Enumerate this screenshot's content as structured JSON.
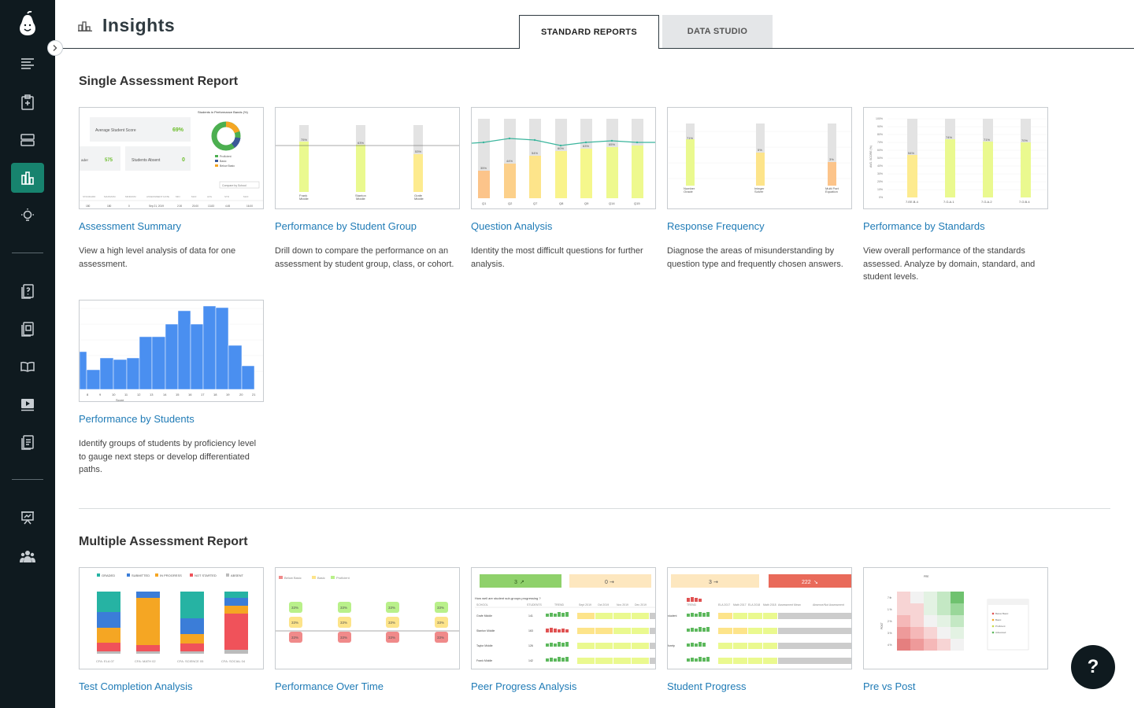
{
  "header": {
    "title": "Insights"
  },
  "tabs": [
    {
      "label": "STANDARD REPORTS",
      "active": true
    },
    {
      "label": "DATA STUDIO",
      "active": false
    }
  ],
  "sections": {
    "single": {
      "title": "Single Assessment Report",
      "cards": [
        {
          "title": "Assessment Summary",
          "desc": "View a high level analysis of data for one assessment."
        },
        {
          "title": "Performance by Student Group",
          "desc": "Drill down to compare the performance on an assessment by student group, class, or cohort."
        },
        {
          "title": "Question Analysis",
          "desc": "Identity the most difficult questions for further analysis."
        },
        {
          "title": "Response Frequency",
          "desc": "Diagnose the areas of misunderstanding by question type and frequently chosen answers."
        },
        {
          "title": "Performance by Standards",
          "desc": "View overall performance of the standards assessed. Analyze by domain, standard, and student levels."
        },
        {
          "title": "Performance by Students",
          "desc": "Identify groups of students by proficiency level to gauge next steps or develop differentiated paths."
        }
      ]
    },
    "multiple": {
      "title": "Multiple Assessment Report",
      "cards": [
        {
          "title": "Test Completion Analysis"
        },
        {
          "title": "Performance Over Time"
        },
        {
          "title": "Peer Progress Analysis"
        },
        {
          "title": "Student Progress"
        },
        {
          "title": "Pre vs Post"
        }
      ]
    }
  },
  "thumbs": {
    "summary": {
      "avg_label": "Average Student Score",
      "avg_value": "69%",
      "absent_label": "Students Absent",
      "absent_value": "0",
      "count_value": "575",
      "count_label": "ader",
      "bands_title": "Students in Performance Bands (%)",
      "legend": [
        "Proficient",
        "Basic",
        "Below Basic"
      ],
      "compare": "Compare by School"
    },
    "group_labels": [
      "75%",
      "63%",
      "53%"
    ],
    "question_labels": [
      "Q1",
      "Q2",
      "Q7",
      "Q8",
      "Q9",
      "Q14",
      "Q15"
    ],
    "question_values": [
      "35%",
      "44%",
      "54%",
      "60%",
      "63%",
      "65%"
    ],
    "freq_labels": [
      "71%",
      "5%",
      "3%"
    ],
    "standards_labels": [
      "7.EE.B.4",
      "7.G.A.1",
      "7.G.A.2",
      "7.G.B.4"
    ],
    "standards_values": [
      "54%",
      "74%",
      "71%",
      "70%"
    ],
    "students_ticks": [
      "8",
      "9",
      "10",
      "11",
      "12",
      "13",
      "14",
      "15",
      "16",
      "17",
      "18",
      "19",
      "20",
      "21"
    ],
    "students_axis": "Score",
    "completion_legend": [
      "GRADED",
      "SUBMITTED",
      "IN PROGRESS",
      "NOT STARTED",
      "ABSENT"
    ],
    "completion_tests": [
      "CFA: ELA 07",
      "CFA: MATH 02",
      "CFA: SCIENCE 05",
      "CFA: SOCIAL 04"
    ],
    "pot_legend": [
      "Below Basic",
      "Basic",
      "Proficient"
    ],
    "pot_value": "33%",
    "peer_up": "3",
    "peer_flat": "0",
    "peer_question": "How well are student sub-groups progressing ?",
    "peer_rows": [
      "Grafe Middle",
      "Stanton Middle",
      "Taylor Middle",
      "Frank Middle"
    ],
    "progress_up": "3",
    "progress_down": "222"
  },
  "help": {
    "label": "?"
  },
  "colors": {
    "sidebar": "#0f1a1f",
    "active": "#17836e",
    "link": "#1f7bb6",
    "proficient": "#e8f98c",
    "basic": "#fde48a",
    "below": "#fcc48a"
  }
}
